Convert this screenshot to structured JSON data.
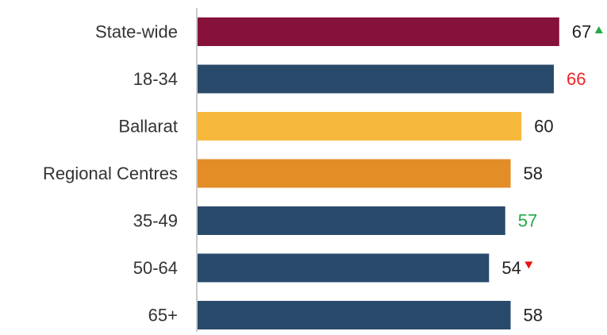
{
  "chart_data": {
    "type": "bar",
    "orientation": "horizontal",
    "title": "",
    "xlabel": "",
    "ylabel": "",
    "grid": false,
    "xlim": [
      0,
      76
    ],
    "categories": [
      "State-wide",
      "18-34",
      "Ballarat",
      "Regional Centres",
      "35-49",
      "50-64",
      "65+"
    ],
    "values": [
      67,
      66,
      60,
      58,
      57,
      54,
      58
    ],
    "value_labels": [
      "67",
      "66",
      "60",
      "58",
      "57",
      "54",
      "58"
    ],
    "bar_colors": [
      "#86123b",
      "#294a6b",
      "#f6b93b",
      "#e38d27",
      "#294a6b",
      "#294a6b",
      "#294a6b"
    ],
    "label_colors": [
      "#222222",
      "#ee2222",
      "#222222",
      "#222222",
      "#22aa44",
      "#222222",
      "#222222"
    ],
    "markers": [
      "up",
      "none",
      "none",
      "none",
      "none",
      "down",
      "none"
    ],
    "marker_colors": {
      "up": "#22aa44",
      "down": "#ee1111"
    },
    "axis_color": "#bbbbbb"
  }
}
